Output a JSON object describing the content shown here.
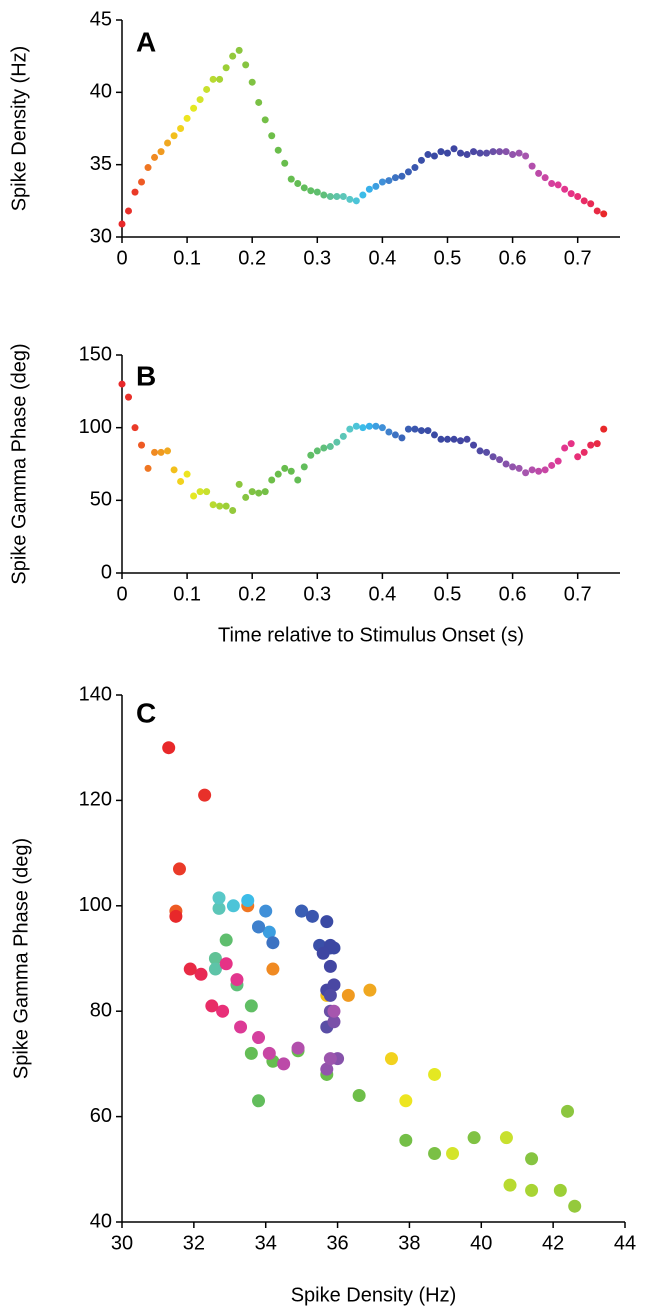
{
  "chart_data": [
    {
      "type": "scatter",
      "annotation": "A",
      "ylabel": "Spike Density (Hz)",
      "xlim": [
        0,
        0.765
      ],
      "xticks": [
        0,
        0.1,
        0.2,
        0.3,
        0.4,
        0.5,
        0.6,
        0.7
      ],
      "ylim": [
        30,
        45
      ],
      "yticks": [
        30,
        35,
        40,
        45
      ],
      "x": [
        0,
        0.01,
        0.02,
        0.03,
        0.04,
        0.05,
        0.06,
        0.07,
        0.08,
        0.09,
        0.1,
        0.11,
        0.12,
        0.13,
        0.14,
        0.15,
        0.16,
        0.17,
        0.18,
        0.19,
        0.2,
        0.21,
        0.22,
        0.23,
        0.24,
        0.25,
        0.26,
        0.27,
        0.28,
        0.29,
        0.3,
        0.31,
        0.32,
        0.33,
        0.34,
        0.35,
        0.36,
        0.37,
        0.38,
        0.39,
        0.4,
        0.41,
        0.42,
        0.43,
        0.44,
        0.45,
        0.46,
        0.47,
        0.48,
        0.49,
        0.5,
        0.51,
        0.52,
        0.53,
        0.54,
        0.55,
        0.56,
        0.57,
        0.58,
        0.59,
        0.6,
        0.61,
        0.62,
        0.63,
        0.64,
        0.65,
        0.66,
        0.67,
        0.68,
        0.69,
        0.7,
        0.71,
        0.72,
        0.73,
        0.74
      ],
      "values": [
        30.9,
        31.8,
        33.1,
        33.8,
        34.8,
        35.5,
        35.9,
        36.5,
        37.0,
        37.5,
        38.2,
        38.9,
        39.5,
        40.2,
        40.9,
        40.9,
        41.7,
        42.5,
        42.9,
        41.9,
        40.7,
        39.3,
        38.1,
        37.0,
        36.0,
        35.1,
        34.0,
        33.7,
        33.4,
        33.2,
        33.1,
        32.9,
        32.8,
        32.8,
        32.8,
        32.6,
        32.5,
        32.9,
        33.3,
        33.5,
        33.8,
        33.9,
        34.1,
        34.2,
        34.5,
        34.8,
        35.3,
        35.7,
        35.6,
        35.9,
        35.8,
        36.1,
        35.8,
        35.7,
        35.9,
        35.8,
        35.8,
        35.9,
        35.9,
        35.9,
        35.7,
        35.8,
        35.6,
        34.9,
        34.4,
        34.1,
        33.7,
        33.6,
        33.3,
        33.0,
        32.8,
        32.5,
        32.3,
        31.8,
        31.6
      ],
      "colors": [
        "#e8282a",
        "#e8302a",
        "#ea3a28",
        "#ee5a24",
        "#ef7622",
        "#f08a22",
        "#f09a20",
        "#f0a820",
        "#f2bf1c",
        "#f2d21e",
        "#ede520",
        "#e4e822",
        "#d4e42a",
        "#c8e02e",
        "#b8da30",
        "#a8d434",
        "#9ccf36",
        "#94c93c",
        "#8cc63f",
        "#86c441",
        "#80c243",
        "#7ac045",
        "#74bf47",
        "#6ebe49",
        "#6abd4b",
        "#68bd4d",
        "#66bd50",
        "#64bd55",
        "#62bd5c",
        "#60be64",
        "#5fbe6e",
        "#5fbf7a",
        "#60c296",
        "#5ec4a8",
        "#5cc6b8",
        "#58c8c8",
        "#4cc4d8",
        "#3cbce8",
        "#38b0ea",
        "#3c9ee0",
        "#4090d8",
        "#3f80cc",
        "#3c72c2",
        "#3a66ba",
        "#3a5eb4",
        "#3a56ae",
        "#3a4fa8",
        "#3a4ca6",
        "#3a4aa4",
        "#3b48a2",
        "#3c47a2",
        "#3e46a2",
        "#4246a2",
        "#4646a2",
        "#4a47a3",
        "#504aa4",
        "#5a4ea6",
        "#6a4fa6",
        "#7a50a8",
        "#8652aa",
        "#9254ac",
        "#9c55ad",
        "#a656ae",
        "#b24fac",
        "#bc4aa8",
        "#c846a4",
        "#d4409e",
        "#dc3a96",
        "#e2368e",
        "#e63286",
        "#e82f78",
        "#e82c66",
        "#e82a54",
        "#e82a44",
        "#e8282a"
      ]
    },
    {
      "type": "scatter",
      "annotation": "B",
      "ylabel": "Spike Gamma Phase (deg)",
      "xlabel": "Time relative to Stimulus Onset (s)",
      "xlim": [
        0,
        0.765
      ],
      "xticks": [
        0,
        0.1,
        0.2,
        0.3,
        0.4,
        0.5,
        0.6,
        0.7
      ],
      "ylim": [
        0,
        150
      ],
      "yticks": [
        0,
        50,
        100,
        150
      ],
      "x": [
        0,
        0.01,
        0.02,
        0.03,
        0.04,
        0.05,
        0.06,
        0.07,
        0.08,
        0.09,
        0.1,
        0.11,
        0.12,
        0.13,
        0.14,
        0.15,
        0.16,
        0.17,
        0.18,
        0.19,
        0.2,
        0.21,
        0.22,
        0.23,
        0.24,
        0.25,
        0.26,
        0.27,
        0.28,
        0.29,
        0.3,
        0.31,
        0.32,
        0.33,
        0.34,
        0.35,
        0.36,
        0.37,
        0.38,
        0.39,
        0.4,
        0.41,
        0.42,
        0.43,
        0.44,
        0.45,
        0.46,
        0.47,
        0.48,
        0.49,
        0.5,
        0.51,
        0.52,
        0.53,
        0.54,
        0.55,
        0.56,
        0.57,
        0.58,
        0.59,
        0.6,
        0.61,
        0.62,
        0.63,
        0.64,
        0.65,
        0.66,
        0.67,
        0.68,
        0.69,
        0.7,
        0.71,
        0.72,
        0.73,
        0.74
      ],
      "values": [
        130,
        121,
        100,
        88,
        72,
        83,
        83,
        84,
        71,
        63,
        68,
        53,
        56,
        56,
        47,
        46,
        46,
        43,
        61,
        52,
        56,
        55,
        56,
        64,
        68,
        72,
        70,
        64,
        73,
        81,
        84,
        86,
        87,
        90,
        94,
        99,
        101,
        100,
        101,
        101,
        100,
        97,
        95,
        93,
        99,
        99,
        98,
        98,
        95,
        92,
        92,
        92,
        91,
        92,
        88,
        84,
        83,
        80,
        78,
        75,
        73,
        72,
        69,
        71,
        70,
        71,
        74,
        77,
        86,
        89,
        80,
        83,
        88,
        89,
        99
      ],
      "colors": [
        "#e8282a",
        "#e8302a",
        "#ea3a28",
        "#ee5a24",
        "#ef7622",
        "#f08a22",
        "#f09a20",
        "#f0a820",
        "#f2bf1c",
        "#f2d21e",
        "#ede520",
        "#e4e822",
        "#d4e42a",
        "#c8e02e",
        "#b8da30",
        "#a8d434",
        "#9ccf36",
        "#94c93c",
        "#8cc63f",
        "#86c441",
        "#80c243",
        "#7ac045",
        "#74bf47",
        "#6ebe49",
        "#6abd4b",
        "#68bd4d",
        "#66bd50",
        "#64bd55",
        "#62bd5c",
        "#60be64",
        "#5fbe6e",
        "#5fbf7a",
        "#60c296",
        "#5ec4a8",
        "#5cc6b8",
        "#58c8c8",
        "#4cc4d8",
        "#3cbce8",
        "#38b0ea",
        "#3c9ee0",
        "#4090d8",
        "#3f80cc",
        "#3c72c2",
        "#3a66ba",
        "#3a5eb4",
        "#3a56ae",
        "#3a4fa8",
        "#3a4ca6",
        "#3a4aa4",
        "#3b48a2",
        "#3c47a2",
        "#3e46a2",
        "#4246a2",
        "#4646a2",
        "#4a47a3",
        "#504aa4",
        "#5a4ea6",
        "#6a4fa6",
        "#7a50a8",
        "#8652aa",
        "#9254ac",
        "#9c55ad",
        "#a656ae",
        "#b24fac",
        "#bc4aa8",
        "#c846a4",
        "#d4409e",
        "#dc3a96",
        "#e2368e",
        "#e63286",
        "#e82f78",
        "#e82c66",
        "#e82a54",
        "#e82a44",
        "#e8282a"
      ]
    },
    {
      "type": "scatter",
      "annotation": "C",
      "ylabel": "Spike Gamma Phase (deg)",
      "xlabel": "Spike Density (Hz)",
      "xlim": [
        30,
        44
      ],
      "xticks": [
        30,
        32,
        34,
        36,
        38,
        40,
        42,
        44
      ],
      "ylim": [
        40,
        140
      ],
      "yticks": [
        40,
        60,
        80,
        100,
        120,
        140
      ],
      "x": [
        31.3,
        32.3,
        31.6,
        31.5,
        33.5,
        34.2,
        36.3,
        36.9,
        35.7,
        37.5,
        37.9,
        38.7,
        39.2,
        40.7,
        40.8,
        41.4,
        42.2,
        42.6,
        42.4,
        41.4,
        39.8,
        38.7,
        37.9,
        36.6,
        35.7,
        34.9,
        34.2,
        33.6,
        33.8,
        33.6,
        32.9,
        33.2,
        32.6,
        32.6,
        32.7,
        32.7,
        33.1,
        33.5,
        33.8,
        34.1,
        34.0,
        33.8,
        34.2,
        35.0,
        35.0,
        35.3,
        35.5,
        35.8,
        35.7,
        35.9,
        35.8,
        35.6,
        35.8,
        35.7,
        35.9,
        35.8,
        35.7,
        35.8,
        35.9,
        36.0,
        35.7,
        35.8,
        35.9,
        34.9,
        34.5,
        34.1,
        33.8,
        33.3,
        33.2,
        32.9,
        32.8,
        32.5,
        32.2,
        31.9,
        31.5
      ],
      "values": [
        130,
        121,
        107,
        99,
        100,
        88,
        83,
        84,
        83,
        71,
        63,
        68,
        53,
        56,
        47,
        46,
        46,
        43,
        61,
        52,
        56,
        53,
        55.5,
        64,
        68,
        72.5,
        70.5,
        72,
        63,
        81,
        93.5,
        85,
        90,
        88,
        99.5,
        101.5,
        100,
        101,
        96,
        95,
        99,
        96,
        93,
        99,
        99,
        98,
        92.5,
        92,
        97,
        92,
        92.5,
        91,
        88.5,
        84,
        85,
        83,
        77,
        80,
        78,
        71,
        69,
        71,
        80,
        73,
        70,
        72,
        75,
        77,
        86,
        89,
        80,
        81,
        87,
        88,
        98
      ],
      "colors": [
        "#e8282a",
        "#e8302a",
        "#ea3a28",
        "#ee5a24",
        "#ef7622",
        "#f08a22",
        "#f09a20",
        "#f0a820",
        "#f2bf1c",
        "#f2d21e",
        "#ede520",
        "#e4e822",
        "#d4e42a",
        "#c8e02e",
        "#b8da30",
        "#a8d434",
        "#9ccf36",
        "#94c93c",
        "#8cc63f",
        "#86c441",
        "#80c243",
        "#7ac045",
        "#74bf47",
        "#6ebe49",
        "#6abd4b",
        "#68bd4d",
        "#66bd50",
        "#64bd55",
        "#62bd5c",
        "#60be64",
        "#5fbe6e",
        "#5fbf7a",
        "#60c296",
        "#5ec4a8",
        "#5cc6b8",
        "#58c8c8",
        "#4cc4d8",
        "#3cbce8",
        "#38b0ea",
        "#3c9ee0",
        "#4090d8",
        "#3f80cc",
        "#3c72c2",
        "#3a66ba",
        "#3a5eb4",
        "#3a56ae",
        "#3a4fa8",
        "#3a4ca6",
        "#3a4aa4",
        "#3b48a2",
        "#3c47a2",
        "#3e46a2",
        "#4246a2",
        "#4646a2",
        "#4a47a3",
        "#504aa4",
        "#5a4ea6",
        "#6a4fa6",
        "#7a50a8",
        "#8652aa",
        "#9254ac",
        "#9c55ad",
        "#a656ae",
        "#b24fac",
        "#bc4aa8",
        "#c846a4",
        "#d4409e",
        "#dc3a96",
        "#e2368e",
        "#e63286",
        "#e82f78",
        "#e82c66",
        "#e82a54",
        "#e82a44",
        "#e8282a"
      ]
    }
  ]
}
